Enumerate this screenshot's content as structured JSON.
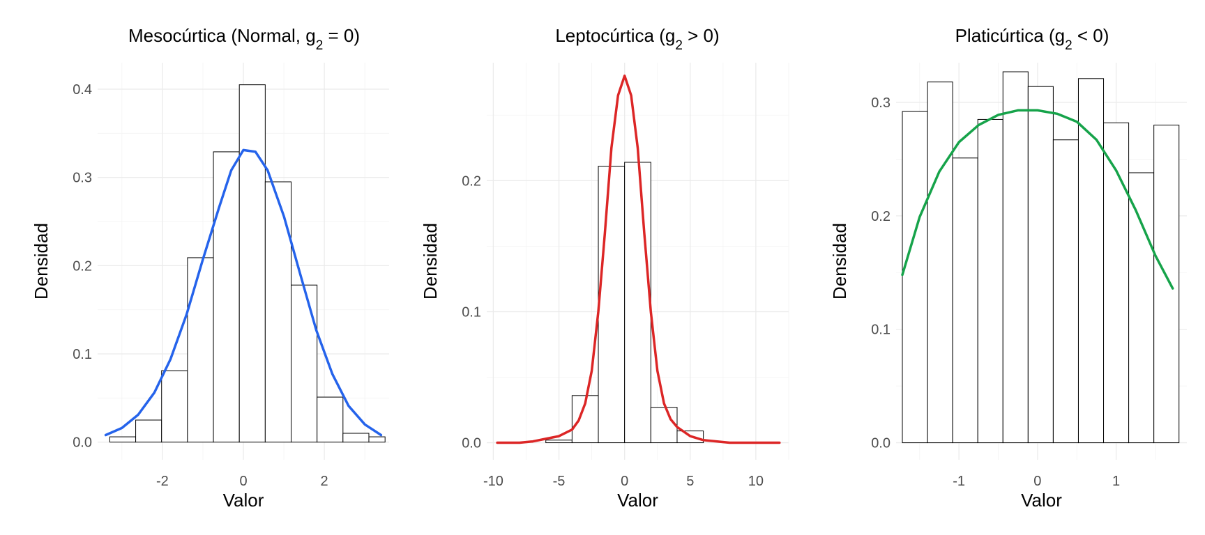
{
  "chart_data": [
    {
      "type": "bar",
      "title": "Mesocúrtica (Normal, g₂ = 0)",
      "xlabel": "Valor",
      "ylabel": "Densidad",
      "xlim": [
        -3.6,
        3.6
      ],
      "ylim": [
        -0.02,
        0.43
      ],
      "x_major_ticks": [
        -2,
        0,
        2
      ],
      "x_minor_ticks": [
        -3,
        -1,
        1,
        3
      ],
      "x_tick_labels": [
        "-2",
        "0",
        "2"
      ],
      "y_major_ticks": [
        0,
        0.1,
        0.2,
        0.3,
        0.4
      ],
      "y_minor_ticks": [
        0.05,
        0.15,
        0.25,
        0.35
      ],
      "y_tick_labels": [
        "0.0",
        "0.1",
        "0.2",
        "0.3",
        "0.4"
      ],
      "grid": true,
      "bin_edges": [
        -3.3,
        -2.66,
        -2.02,
        -1.38,
        -0.74,
        -0.1,
        0.54,
        1.18,
        1.82,
        2.46,
        3.1,
        3.5
      ],
      "values": [
        0.006,
        0.025,
        0.081,
        0.209,
        0.329,
        0.405,
        0.295,
        0.178,
        0.051,
        0.01,
        0.006
      ],
      "curve": {
        "type": "line",
        "color": "#2563eb",
        "x": [
          -3.4,
          -3.0,
          -2.6,
          -2.2,
          -1.8,
          -1.4,
          -1.0,
          -0.6,
          -0.3,
          0.0,
          0.3,
          0.6,
          1.0,
          1.4,
          1.8,
          2.2,
          2.6,
          3.0,
          3.4
        ],
        "y": [
          0.008,
          0.016,
          0.031,
          0.056,
          0.094,
          0.145,
          0.207,
          0.266,
          0.308,
          0.331,
          0.329,
          0.308,
          0.256,
          0.191,
          0.127,
          0.077,
          0.041,
          0.02,
          0.008
        ]
      }
    },
    {
      "type": "bar",
      "title": "Leptocúrtica (g₂ > 0)",
      "xlabel": "Valor",
      "ylabel": "Densidad",
      "xlim": [
        -10.5,
        12.5
      ],
      "ylim": [
        -0.013,
        0.29
      ],
      "x_major_ticks": [
        -10,
        -5,
        0,
        5,
        10
      ],
      "x_minor_ticks": [
        -7.5,
        -2.5,
        2.5,
        7.5,
        12.5
      ],
      "x_tick_labels": [
        "-10",
        "-5",
        "0",
        "5",
        "10"
      ],
      "y_major_ticks": [
        0,
        0.1,
        0.2
      ],
      "y_minor_ticks": [
        0.05,
        0.15,
        0.25
      ],
      "y_tick_labels": [
        "0.0",
        "0.1",
        "0.2"
      ],
      "grid": true,
      "bin_edges": [
        -6.0,
        -4.0,
        -2.0,
        0.0,
        2.0,
        4.0,
        6.0
      ],
      "values": [
        0.002,
        0.036,
        0.211,
        0.214,
        0.027,
        0.009
      ],
      "curve": {
        "type": "line",
        "color": "#dc2626",
        "x": [
          -9.7,
          -8.0,
          -7.0,
          -6.0,
          -5.0,
          -4.0,
          -3.5,
          -3.0,
          -2.5,
          -2.0,
          -1.5,
          -1.0,
          -0.5,
          0.0,
          0.5,
          1.0,
          1.5,
          2.0,
          2.5,
          3.0,
          3.5,
          4.0,
          5.0,
          6.0,
          8.0,
          10.0,
          11.8
        ],
        "y": [
          0.0,
          0.0,
          0.001,
          0.003,
          0.005,
          0.01,
          0.017,
          0.03,
          0.055,
          0.1,
          0.16,
          0.225,
          0.265,
          0.28,
          0.265,
          0.225,
          0.16,
          0.1,
          0.055,
          0.03,
          0.018,
          0.012,
          0.005,
          0.002,
          0.0,
          0.0,
          0.0
        ]
      }
    },
    {
      "type": "bar",
      "title": "Platicúrtica (g₂ < 0)",
      "xlabel": "Valor",
      "ylabel": "Densidad",
      "xlim": [
        -1.8,
        1.9
      ],
      "ylim": [
        -0.015,
        0.335
      ],
      "x_major_ticks": [
        -1,
        0,
        1
      ],
      "x_minor_ticks": [
        -1.5,
        -0.5,
        0.5,
        1.5
      ],
      "x_tick_labels": [
        "-1",
        "0",
        "1"
      ],
      "y_major_ticks": [
        0,
        0.1,
        0.2,
        0.3
      ],
      "y_minor_ticks": [
        0.05,
        0.15,
        0.25
      ],
      "y_tick_labels": [
        "0.0",
        "0.1",
        "0.2",
        "0.3"
      ],
      "grid": true,
      "bin_edges": [
        -1.72,
        -1.4,
        -1.08,
        -0.76,
        -0.44,
        -0.12,
        0.2,
        0.52,
        0.84,
        1.16,
        1.48,
        1.8
      ],
      "values": [
        0.292,
        0.318,
        0.251,
        0.285,
        0.327,
        0.314,
        0.267,
        0.321,
        0.282,
        0.238,
        0.28
      ],
      "curve": {
        "type": "line",
        "color": "#16a34a",
        "x": [
          -1.72,
          -1.5,
          -1.25,
          -1.0,
          -0.75,
          -0.5,
          -0.25,
          0.0,
          0.25,
          0.5,
          0.75,
          1.0,
          1.25,
          1.5,
          1.72
        ],
        "y": [
          0.148,
          0.199,
          0.239,
          0.265,
          0.28,
          0.289,
          0.293,
          0.293,
          0.29,
          0.283,
          0.267,
          0.24,
          0.205,
          0.165,
          0.136
        ]
      }
    }
  ]
}
